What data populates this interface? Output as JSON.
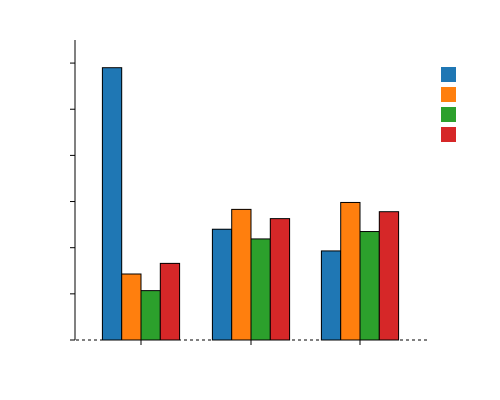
{
  "chart_data": {
    "type": "bar",
    "categories": [
      "",
      "",
      ""
    ],
    "series": [
      {
        "color": "#1f77b4",
        "values": [
          5.9,
          2.4,
          1.93
        ]
      },
      {
        "color": "#ff7f0e",
        "values": [
          1.43,
          2.83,
          2.98
        ]
      },
      {
        "color": "#2ca02c",
        "values": [
          1.07,
          2.19,
          2.35
        ]
      },
      {
        "color": "#d62728",
        "values": [
          1.66,
          2.63,
          2.78
        ]
      }
    ],
    "ylim": [
      0,
      6.5
    ],
    "yticks": [
      0,
      1,
      2,
      3,
      4,
      5,
      6
    ],
    "tick_labels_visible": false,
    "legend": {
      "position": "top-right",
      "labels_visible": false
    },
    "baseline": "dashed",
    "grid": false
  }
}
